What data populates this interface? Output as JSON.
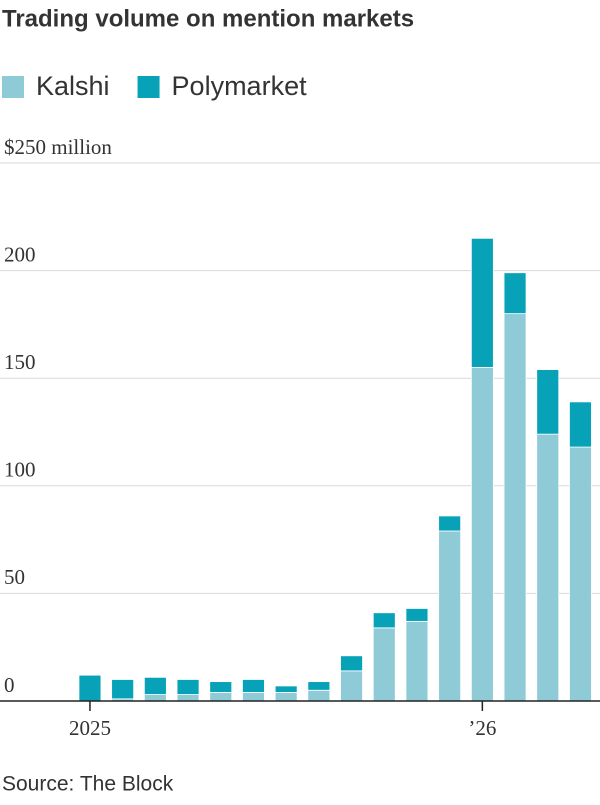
{
  "chart_data": {
    "type": "bar",
    "stacked": true,
    "title": "Trading volume on mention markets",
    "source": "Source: The Block",
    "categories": [
      "2025",
      null,
      null,
      null,
      null,
      null,
      null,
      null,
      null,
      null,
      null,
      null,
      "’26",
      null,
      null,
      null
    ],
    "series": [
      {
        "name": "Kalshi",
        "color": "#8ecbd7",
        "values": [
          0,
          1,
          3,
          3,
          4,
          4,
          4,
          5,
          14,
          34,
          37,
          79,
          155,
          180,
          124,
          118
        ]
      },
      {
        "name": "Polymarket",
        "color": "#08a2b8",
        "values": [
          12,
          9,
          8,
          7,
          5,
          6,
          3,
          4,
          7,
          7,
          6,
          7,
          60,
          19,
          30,
          21
        ]
      }
    ],
    "ylim": [
      0,
      250
    ],
    "yticks": [
      0,
      50,
      100,
      150,
      200,
      {
        "value": 250,
        "label": "$250 million"
      }
    ],
    "grid": true
  }
}
